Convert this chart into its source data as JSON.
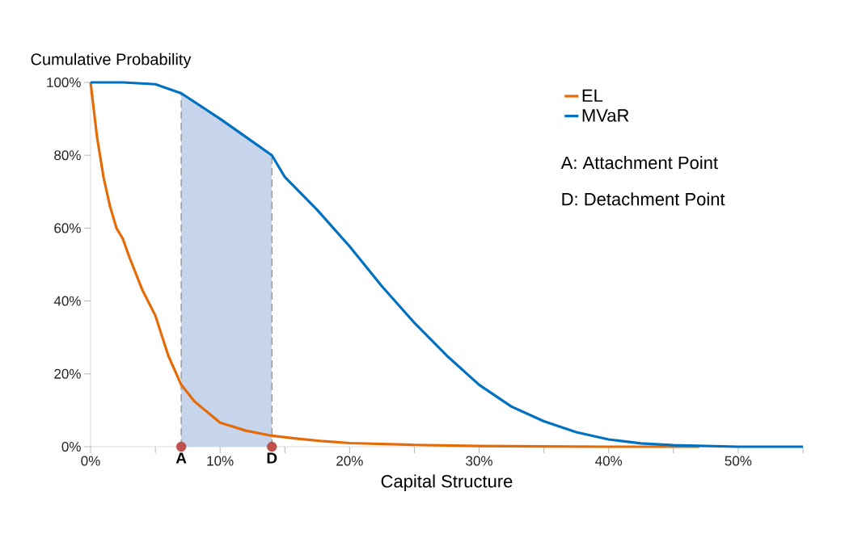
{
  "chart_data": {
    "type": "line",
    "ylabel": "Cumulative Probability",
    "xlabel": "Capital Structure",
    "xlim": [
      0,
      55
    ],
    "ylim": [
      0,
      100
    ],
    "xticks": [
      {
        "value": 0,
        "label": "0%"
      },
      {
        "value": 5,
        "label": null
      },
      {
        "value": 10,
        "label": "10%"
      },
      {
        "value": 15,
        "label": null
      },
      {
        "value": 20,
        "label": "20%"
      },
      {
        "value": 25,
        "label": null
      },
      {
        "value": 30,
        "label": "30%"
      },
      {
        "value": 35,
        "label": null
      },
      {
        "value": 40,
        "label": "40%"
      },
      {
        "value": 45,
        "label": null
      },
      {
        "value": 50,
        "label": "50%"
      },
      {
        "value": 55,
        "label": null
      }
    ],
    "yticks": [
      {
        "value": 0,
        "label": "0%"
      },
      {
        "value": 20,
        "label": "20%"
      },
      {
        "value": 40,
        "label": "40%"
      },
      {
        "value": 60,
        "label": "60%"
      },
      {
        "value": 80,
        "label": "80%"
      },
      {
        "value": 100,
        "label": "100%"
      }
    ],
    "series": [
      {
        "name": "EL",
        "color": "#e36c09",
        "x": [
          0,
          0.5,
          1,
          1.5,
          2,
          2.5,
          3,
          4,
          5,
          6,
          7,
          8,
          10,
          12,
          14,
          16,
          18,
          20,
          25,
          30,
          35,
          40,
          47
        ],
        "values": [
          100,
          85,
          74,
          66,
          60,
          57,
          52,
          43,
          36,
          25,
          17,
          12.5,
          6.6,
          4.4,
          3,
          2.2,
          1.5,
          1,
          0.5,
          0.2,
          0.1,
          0,
          0
        ]
      },
      {
        "name": "MVaR",
        "color": "#0070c0",
        "x": [
          0,
          2.5,
          5,
          7,
          10,
          12,
          14,
          15,
          17.5,
          20,
          22.5,
          25,
          27.5,
          30,
          32.5,
          35,
          37.5,
          40,
          42.5,
          45,
          50,
          55
        ],
        "values": [
          100,
          100,
          99.5,
          97,
          90,
          85,
          80,
          74,
          65,
          55,
          44,
          34,
          25,
          17,
          11,
          7,
          4,
          2,
          0.9,
          0.4,
          0,
          0
        ]
      },
      {
        "type": "scatter",
        "color": "#c0504d",
        "x": [
          7,
          14
        ],
        "values": [
          0,
          0
        ]
      }
    ],
    "bands": [
      {
        "axis": "x",
        "from": 7,
        "to": 14,
        "color": "#c6d4ec"
      }
    ],
    "ref_lines": [
      {
        "axis": "x",
        "value": 7,
        "color": "#808080",
        "line_style": "dashed"
      },
      {
        "axis": "x",
        "value": 14,
        "color": "#808080",
        "line_style": "dashed"
      }
    ],
    "annotations": [
      {
        "text": "A",
        "x": 7,
        "y": 0
      },
      {
        "text": "D",
        "x": 14,
        "y": 0
      },
      "A: Attachment Point",
      "D: Detachment Point"
    ],
    "legend": "top right",
    "grid": false
  }
}
